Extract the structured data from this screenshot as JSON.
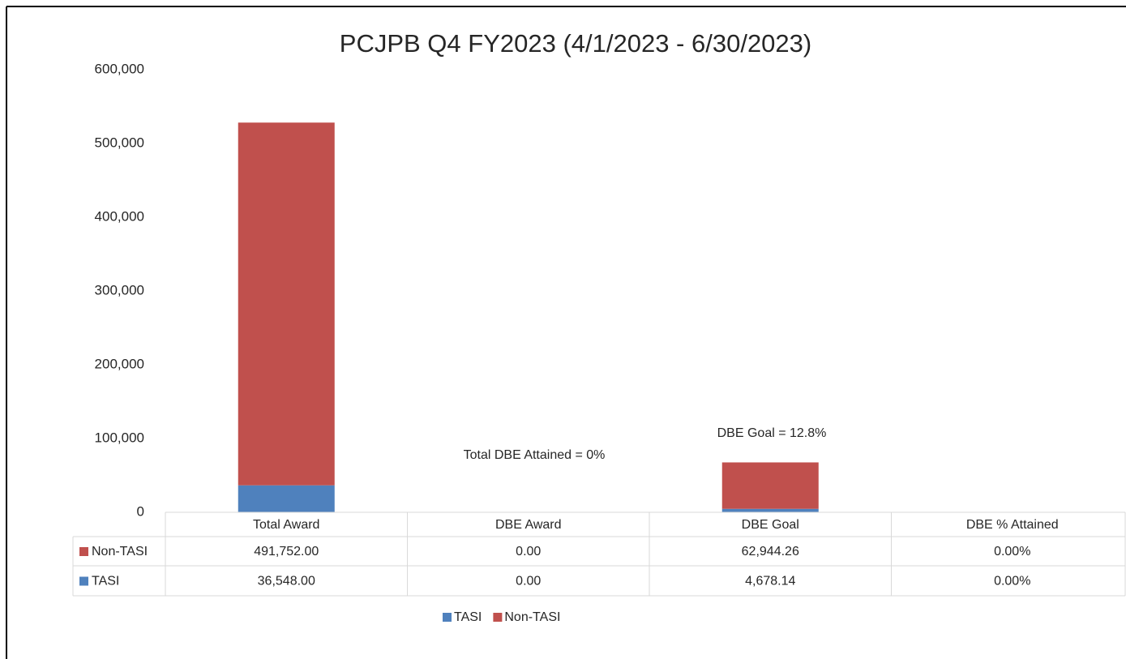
{
  "chart_data": {
    "type": "stacked-bar",
    "title": "PCJPB Q4 FY2023 (4/1/2023 - 6/30/2023)",
    "categories": [
      "Total Award",
      "DBE Award",
      "DBE Goal",
      "DBE % Attained"
    ],
    "series": [
      {
        "name": "TASI",
        "color": "#4f81bd",
        "values": [
          36548,
          0,
          4678.14,
          0
        ],
        "value_labels": [
          "36,548.00",
          "0.00",
          "4,678.14",
          "0.00%"
        ]
      },
      {
        "name": "Non-TASI",
        "color": "#c0504d",
        "values": [
          491752,
          0,
          62944.26,
          0
        ],
        "value_labels": [
          "491,752.00",
          "0.00",
          "62,944.26",
          "0.00%"
        ]
      }
    ],
    "ylim": [
      0,
      600000
    ],
    "yticks": [
      0,
      {
        "value": 100000,
        "label": "100,000"
      },
      {
        "value": 200000,
        "label": "200,000"
      },
      {
        "value": 300000,
        "label": "300,000"
      },
      {
        "value": 400000,
        "label": "400,000"
      },
      {
        "value": 500000,
        "label": "500,000"
      },
      {
        "value": 600000,
        "label": "600,000"
      }
    ],
    "grid": false,
    "legend": "bottom",
    "annotations": [
      "Total DBE Attained = 0%",
      "DBE Goal = 12.8%"
    ]
  }
}
